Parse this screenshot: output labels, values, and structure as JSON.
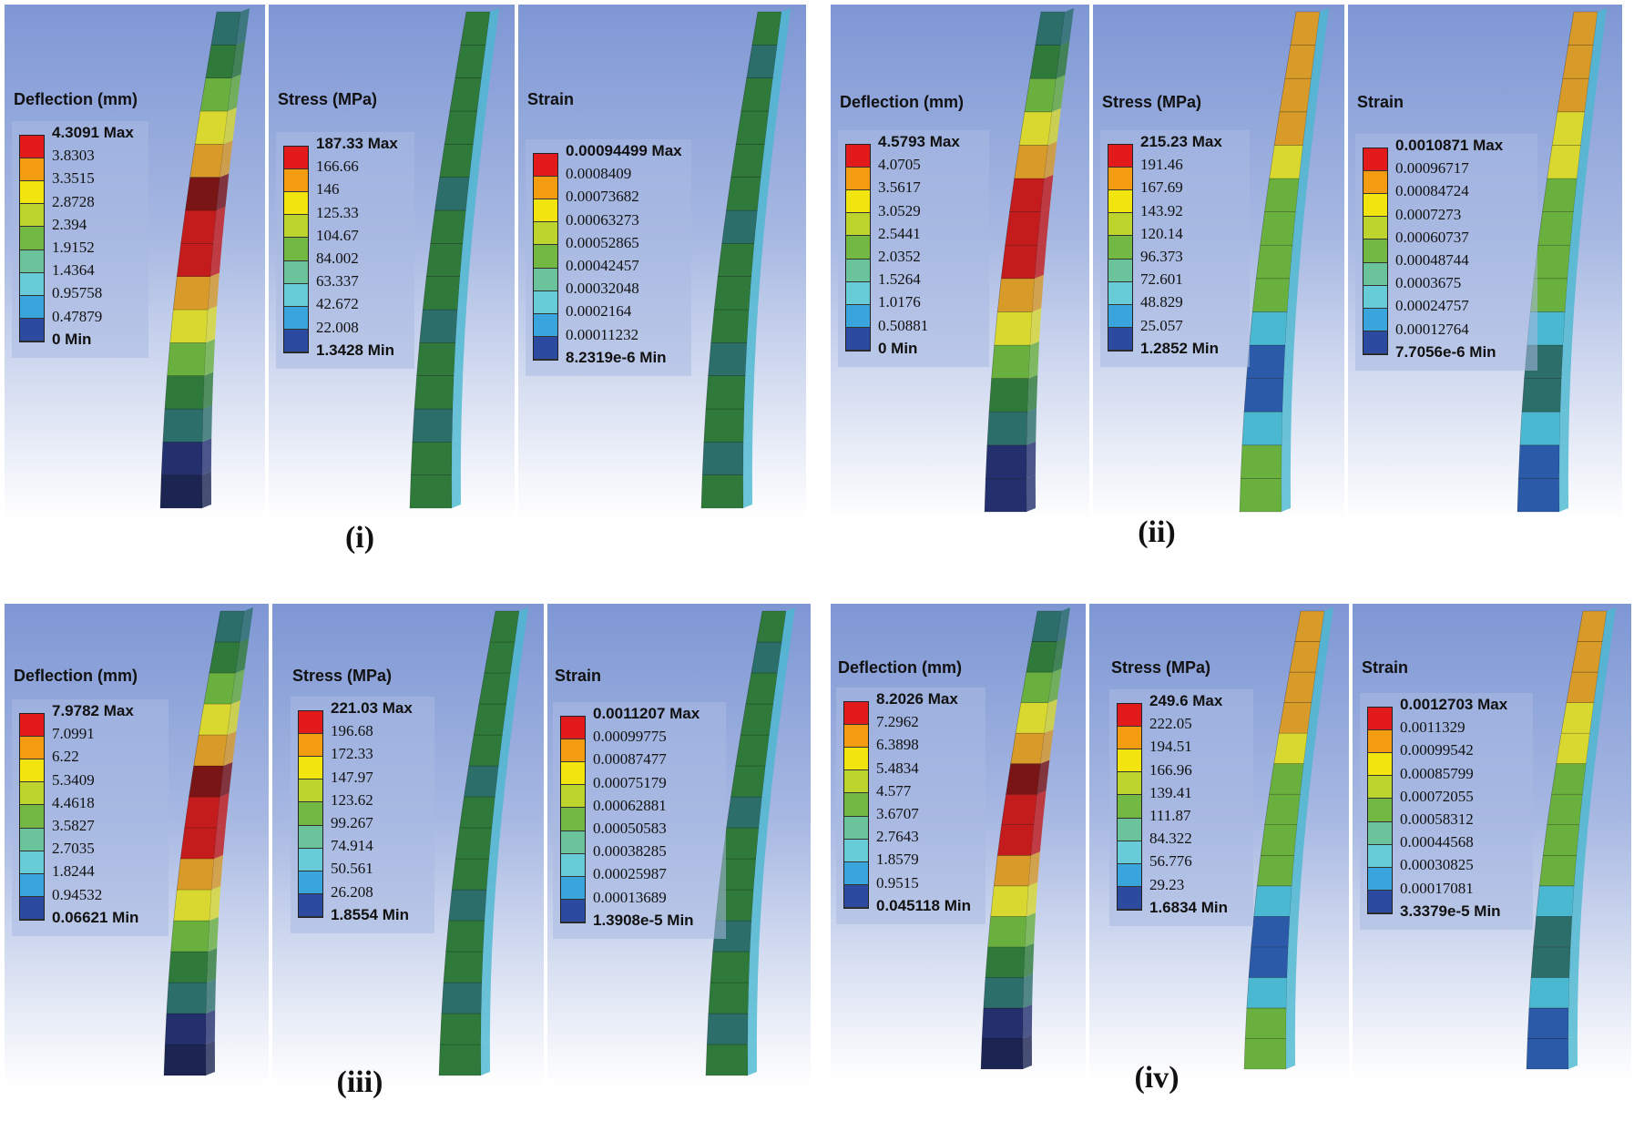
{
  "scale_colors": [
    "#e31a1c",
    "#f39c12",
    "#f1e40f",
    "#bcd42b",
    "#72b843",
    "#6ac39b",
    "#68cbd8",
    "#3aa4dc",
    "#2b4aa0"
  ],
  "beam_colors": {
    "dark": "#1c2452",
    "navy": "#24306e",
    "teal": "#2c6e6a",
    "green": "#2f7a3a",
    "lgreen": "#6ab03e",
    "yellow": "#d8d830",
    "orange": "#d89a28",
    "red": "#c41c1c",
    "dred": "#7a1515",
    "cyan": "#4ab8d0",
    "blue": "#2a5aa8"
  },
  "cases": [
    {
      "label": "(i)",
      "panels": [
        {
          "title": "Deflection (mm)",
          "values": [
            "4.3091 Max",
            "3.8303",
            "3.3515",
            "2.8728",
            "2.394",
            "1.9152",
            "1.4364",
            "0.95758",
            "0.47879",
            "0 Min"
          ]
        },
        {
          "title": "Stress (MPa)",
          "values": [
            "187.33 Max",
            "166.66",
            "146",
            "125.33",
            "104.67",
            "84.002",
            "63.337",
            "42.672",
            "22.008",
            "1.3428 Min"
          ]
        },
        {
          "title": "Strain",
          "values": [
            "0.00094499 Max",
            "0.0008409",
            "0.00073682",
            "0.00063273",
            "0.00052865",
            "0.00042457",
            "0.00032048",
            "0.0002164",
            "0.00011232",
            "8.2319e-6 Min"
          ]
        }
      ]
    },
    {
      "label": "(ii)",
      "panels": [
        {
          "title": "Deflection (mm)",
          "values": [
            "4.5793 Max",
            "4.0705",
            "3.5617",
            "3.0529",
            "2.5441",
            "2.0352",
            "1.5264",
            "1.0176",
            "0.50881",
            "0 Min"
          ]
        },
        {
          "title": "Stress (MPa)",
          "values": [
            "215.23 Max",
            "191.46",
            "167.69",
            "143.92",
            "120.14",
            "96.373",
            "72.601",
            "48.829",
            "25.057",
            "1.2852 Min"
          ]
        },
        {
          "title": "Strain",
          "values": [
            "0.0010871 Max",
            "0.00096717",
            "0.00084724",
            "0.0007273",
            "0.00060737",
            "0.00048744",
            "0.0003675",
            "0.00024757",
            "0.00012764",
            "7.7056e-6 Min"
          ]
        }
      ]
    },
    {
      "label": "(iii)",
      "panels": [
        {
          "title": "Deflection (mm)",
          "values": [
            "7.9782 Max",
            "7.0991",
            "6.22",
            "5.3409",
            "4.4618",
            "3.5827",
            "2.7035",
            "1.8244",
            "0.94532",
            "0.06621 Min"
          ]
        },
        {
          "title": "Stress (MPa)",
          "values": [
            "221.03 Max",
            "196.68",
            "172.33",
            "147.97",
            "123.62",
            "99.267",
            "74.914",
            "50.561",
            "26.208",
            "1.8554 Min"
          ]
        },
        {
          "title": "Strain",
          "values": [
            "0.0011207 Max",
            "0.00099775",
            "0.00087477",
            "0.00075179",
            "0.00062881",
            "0.00050583",
            "0.00038285",
            "0.00025987",
            "0.00013689",
            "1.3908e-5 Min"
          ]
        }
      ]
    },
    {
      "label": "(iv)",
      "panels": [
        {
          "title": "Deflection (mm)",
          "values": [
            "8.2026 Max",
            "7.2962",
            "6.3898",
            "5.4834",
            "4.577",
            "3.6707",
            "2.7643",
            "1.8579",
            "0.9515",
            "0.045118 Min"
          ]
        },
        {
          "title": "Stress (MPa)",
          "values": [
            "249.6 Max",
            "222.05",
            "194.51",
            "166.96",
            "139.41",
            "111.87",
            "84.322",
            "56.776",
            "29.23",
            "1.6834 Min"
          ]
        },
        {
          "title": "Strain",
          "values": [
            "0.0012703 Max",
            "0.0011329",
            "0.00099542",
            "0.00085799",
            "0.00072055",
            "0.00058312",
            "0.00044568",
            "0.00030825",
            "0.00017081",
            "3.3379e-5 Min"
          ]
        }
      ]
    }
  ]
}
